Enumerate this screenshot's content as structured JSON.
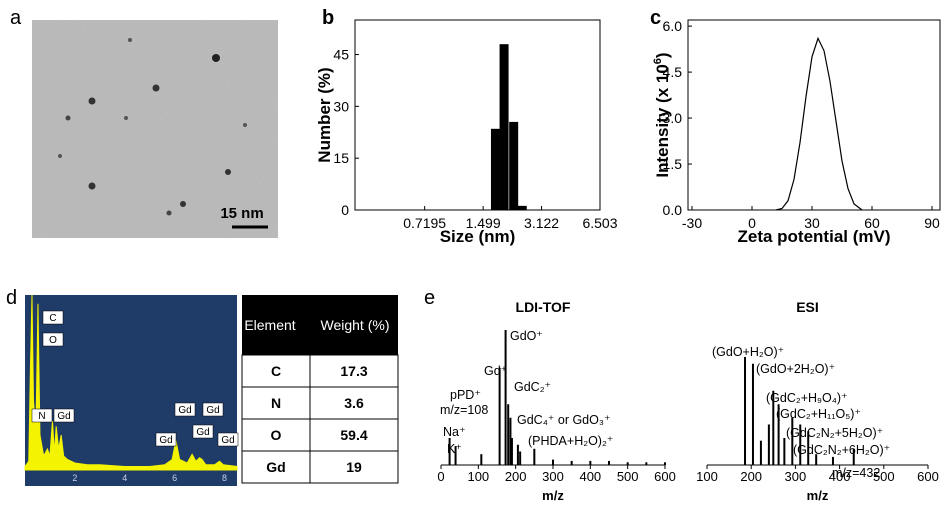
{
  "panel_labels": [
    "a",
    "b",
    "c",
    "d",
    "e"
  ],
  "image": {
    "scale_bar": "15 nm"
  },
  "table": {
    "header": [
      "Element",
      "Weight (%)"
    ],
    "rows": [
      [
        "C",
        "17.3"
      ],
      [
        "N",
        "3.6"
      ],
      [
        "O",
        "59.4"
      ],
      [
        "Gd",
        "19"
      ]
    ]
  },
  "chart_data": [
    {
      "type": "bar",
      "xlabel": "Size (nm)",
      "ylabel": "Number (%)",
      "color": "#000000",
      "xlog": true,
      "x": [
        1.75,
        1.95,
        2.2,
        2.45
      ],
      "values": [
        23.5,
        48,
        25.5,
        1.2
      ],
      "xlim": [
        0.3,
        6.503
      ],
      "xticks": [
        0.7195,
        1.499,
        3.122,
        6.503
      ],
      "ylim": [
        0,
        55
      ],
      "yticks": [
        0,
        15,
        30,
        45
      ]
    },
    {
      "type": "line",
      "xlabel": "Zeta potential (mV)",
      "ylabel": "Intensity (x 10",
      "ylabel_exp": "6",
      "ylabel_end": ")",
      "color": "#000000",
      "x": [
        12,
        15,
        18,
        21,
        24,
        27,
        30,
        33,
        36,
        39,
        42,
        45,
        48,
        51,
        55
      ],
      "values": [
        0,
        0.05,
        0.3,
        1.0,
        2.2,
        3.7,
        5.0,
        5.6,
        5.2,
        4.2,
        2.9,
        1.6,
        0.7,
        0.2,
        0
      ],
      "xlim": [
        -32,
        94
      ],
      "xticks": [
        -30,
        0,
        30,
        60,
        90
      ],
      "ylim": [
        0,
        6.2
      ],
      "yticks": [
        {
          "value": 0,
          "label": "0.0"
        },
        {
          "value": 1.5,
          "label": "1.5"
        },
        {
          "value": 3,
          "label": "3.0"
        },
        {
          "value": 4.5,
          "label": "4.5"
        },
        {
          "value": 6,
          "label": "6.0"
        }
      ]
    },
    {
      "type": "area",
      "color": "#f4f400",
      "background": "#1f3b68",
      "x": [
        0,
        0.15,
        0.22,
        0.28,
        0.34,
        0.39,
        0.44,
        0.52,
        0.6,
        0.75,
        0.9,
        1.0,
        1.1,
        1.18,
        1.25,
        1.35,
        1.45,
        1.55,
        1.7,
        2.0,
        2.5,
        3.0,
        4.0,
        5.0,
        5.6,
        5.9,
        6.05,
        6.2,
        6.5,
        6.7,
        6.85,
        7.0,
        7.1,
        7.25,
        7.6,
        7.8,
        7.95,
        8.5
      ],
      "values": [
        2,
        5,
        60,
        100,
        40,
        30,
        25,
        95,
        20,
        8,
        12,
        8,
        28,
        10,
        25,
        12,
        20,
        8,
        6,
        4,
        3,
        3,
        2,
        2,
        3,
        6,
        17,
        6,
        4,
        9,
        5,
        7,
        6,
        3,
        3,
        5,
        3,
        2
      ],
      "xlim": [
        0,
        8.5
      ],
      "xticks": [
        2,
        4,
        6,
        8
      ],
      "ylim": [
        0,
        100
      ],
      "annotations": [
        "C",
        "O",
        "N",
        "Gd",
        "Gd",
        "Gd",
        "Gd",
        "Gd",
        "Gd"
      ]
    },
    {
      "type": "stick",
      "title": "LDI-TOF",
      "xlabel": "m/z",
      "color": "#000000",
      "x": [
        23,
        39,
        108,
        157,
        173,
        180,
        186,
        190,
        206,
        212,
        250,
        300,
        350,
        400,
        450,
        500,
        550,
        600
      ],
      "values": [
        20,
        14,
        8,
        72,
        100,
        45,
        35,
        20,
        15,
        10,
        12,
        4,
        3,
        3,
        3,
        2,
        2,
        2
      ],
      "xlim": [
        0,
        600
      ],
      "xticks": [
        0,
        100,
        200,
        300,
        400,
        500,
        600
      ],
      "ylim": [
        0,
        100
      ],
      "annotations": [
        "GdO⁺",
        "Gd⁺",
        "pPD⁺",
        "m/z=108",
        "Na⁺",
        "K⁺",
        "GdC₂⁺",
        "GdC₄⁺ or GdO₃⁺",
        "(PHDA+H₂O)₂⁺"
      ]
    },
    {
      "type": "stick",
      "title": "ESI",
      "xlabel": "m/z",
      "color": "#000000",
      "x": [
        186,
        204,
        222,
        240,
        250,
        262,
        275,
        293,
        311,
        329,
        347,
        385,
        432
      ],
      "values": [
        80,
        75,
        18,
        30,
        55,
        45,
        20,
        35,
        30,
        25,
        8,
        6,
        12
      ],
      "xlim": [
        100,
        600
      ],
      "xticks": [
        100,
        200,
        300,
        400,
        500,
        600
      ],
      "ylim": [
        0,
        100
      ],
      "annotations": [
        "(GdO+H₂O)⁺",
        "(GdO+2H₂O)⁺",
        "(GdC₂+H₉O₄)⁺",
        "(GdC₂+H₁₁O₅)⁺",
        "(GdC₂N₂+5H₂O)⁺",
        "(GdC₂N₂+6H₂O)⁺",
        "m/z=432"
      ]
    }
  ]
}
